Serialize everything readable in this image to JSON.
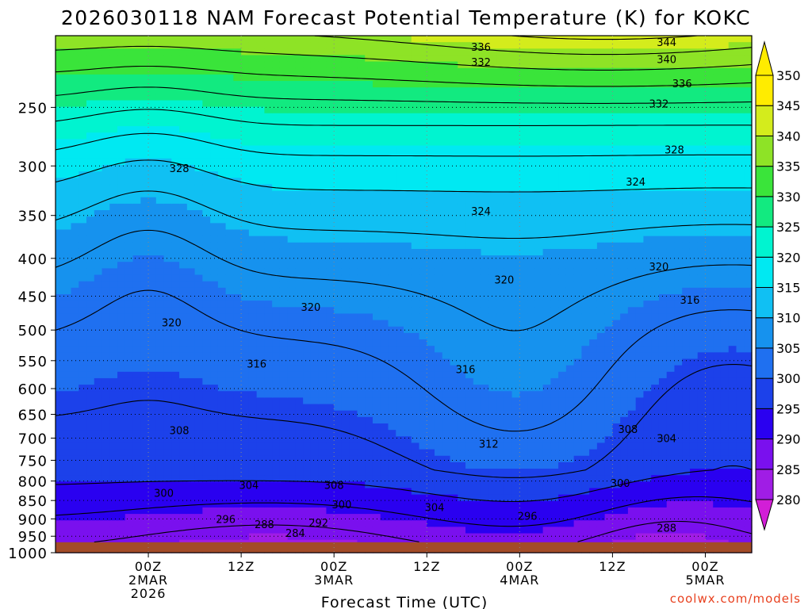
{
  "chart_data": {
    "type": "heatmap",
    "title": "2026030118 NAM Forecast Potential Temperature (K) for KOKC",
    "xlabel": "Forecast Time (UTC)",
    "ylabel": "",
    "y_scale": "log-pressure",
    "ylim": [
      1000,
      200
    ],
    "y_ticks": [
      250,
      300,
      350,
      400,
      450,
      500,
      550,
      600,
      650,
      700,
      750,
      800,
      850,
      900,
      950,
      1000
    ],
    "x_range_hours": [
      -6,
      84
    ],
    "x_ticks": [
      {
        "hour": 6,
        "lines": [
          "00Z",
          "2MAR",
          "2026"
        ]
      },
      {
        "hour": 18,
        "lines": [
          "12Z"
        ]
      },
      {
        "hour": 30,
        "lines": [
          "00Z",
          "3MAR"
        ]
      },
      {
        "hour": 42,
        "lines": [
          "12Z"
        ]
      },
      {
        "hour": 54,
        "lines": [
          "00Z",
          "4MAR"
        ]
      },
      {
        "hour": 66,
        "lines": [
          "12Z"
        ]
      },
      {
        "hour": 78,
        "lines": [
          "00Z",
          "5MAR"
        ]
      }
    ],
    "grid": true,
    "colorbar": {
      "levels": [
        280,
        285,
        290,
        295,
        300,
        305,
        310,
        315,
        320,
        325,
        330,
        335,
        340,
        345,
        350
      ],
      "colors": [
        "#d21ed7",
        "#a01de5",
        "#7a10ee",
        "#2a00f0",
        "#1c41ea",
        "#1f70f0",
        "#1692ee",
        "#10c0f3",
        "#00e9f2",
        "#00f4d0",
        "#12ea80",
        "#3ae43a",
        "#8ee326",
        "#d4ec1c",
        "#ffec00"
      ]
    },
    "contour_interval": 4,
    "ground_color": "#a34b28",
    "contour_labels": [
      {
        "hour": 49,
        "p": 207,
        "value": "336"
      },
      {
        "hour": 49,
        "p": 217,
        "value": "332"
      },
      {
        "hour": 73,
        "p": 204,
        "value": "344"
      },
      {
        "hour": 73,
        "p": 215,
        "value": "340"
      },
      {
        "hour": 75,
        "p": 232,
        "value": "336"
      },
      {
        "hour": 72,
        "p": 247,
        "value": "332"
      },
      {
        "hour": 74,
        "p": 285,
        "value": "328"
      },
      {
        "hour": 10,
        "p": 302,
        "value": "328"
      },
      {
        "hour": 69,
        "p": 315,
        "value": "324"
      },
      {
        "hour": 49,
        "p": 345,
        "value": "324"
      },
      {
        "hour": 72,
        "p": 410,
        "value": "320"
      },
      {
        "hour": 52,
        "p": 427,
        "value": "320"
      },
      {
        "hour": 27,
        "p": 465,
        "value": "320"
      },
      {
        "hour": 9,
        "p": 488,
        "value": "320"
      },
      {
        "hour": 76,
        "p": 455,
        "value": "316"
      },
      {
        "hour": 47,
        "p": 565,
        "value": "316"
      },
      {
        "hour": 20,
        "p": 555,
        "value": "316"
      },
      {
        "hour": 68,
        "p": 680,
        "value": "308"
      },
      {
        "hour": 10,
        "p": 683,
        "value": "308"
      },
      {
        "hour": 50,
        "p": 712,
        "value": "312"
      },
      {
        "hour": 73,
        "p": 700,
        "value": "304"
      },
      {
        "hour": 19,
        "p": 810,
        "value": "304"
      },
      {
        "hour": 30,
        "p": 810,
        "value": "308"
      },
      {
        "hour": 8,
        "p": 830,
        "value": "300"
      },
      {
        "hour": 31,
        "p": 860,
        "value": "300"
      },
      {
        "hour": 43,
        "p": 868,
        "value": "304"
      },
      {
        "hour": 67,
        "p": 805,
        "value": "300"
      },
      {
        "hour": 55,
        "p": 892,
        "value": "296"
      },
      {
        "hour": 16,
        "p": 900,
        "value": "296"
      },
      {
        "hour": 21,
        "p": 915,
        "value": "288"
      },
      {
        "hour": 28,
        "p": 910,
        "value": "292"
      },
      {
        "hour": 25,
        "p": 940,
        "value": "284"
      },
      {
        "hour": 73,
        "p": 925,
        "value": "288"
      }
    ]
  },
  "credit": "coolwx.com/models"
}
